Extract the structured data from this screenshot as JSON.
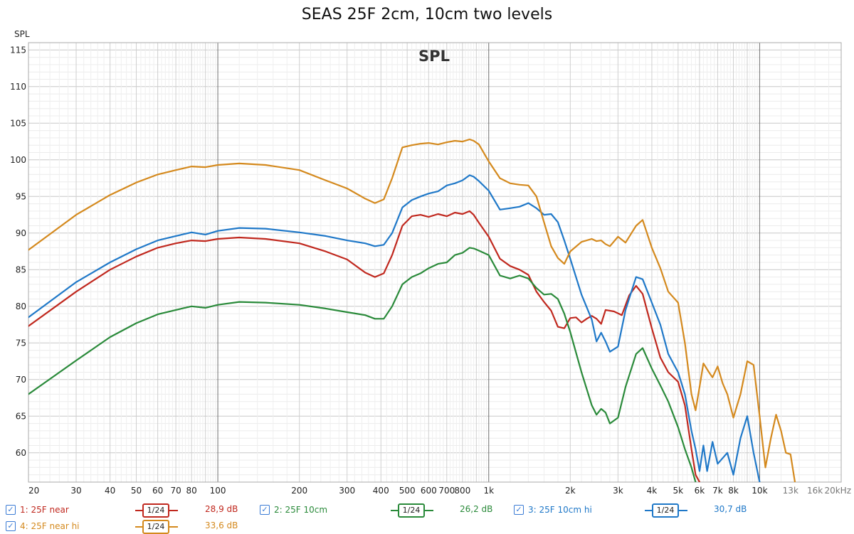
{
  "chart_data": {
    "type": "line",
    "title": "SEAS 25F 2cm, 10cm two levels",
    "plot_label": "SPL",
    "ylabel": "SPL",
    "xscale": "log",
    "xlim": [
      20,
      20000
    ],
    "ylim": [
      56,
      116
    ],
    "grid": true,
    "y_ticks": [
      "115",
      "110",
      "105",
      "100",
      "95",
      "90",
      "85",
      "80",
      "75",
      "70",
      "65",
      "60"
    ],
    "y_tick_values": [
      115,
      110,
      105,
      100,
      95,
      90,
      85,
      80,
      75,
      70,
      65,
      60
    ],
    "x_ticks": [
      {
        "v": 20,
        "label": "20"
      },
      {
        "v": 30,
        "label": "30"
      },
      {
        "v": 40,
        "label": "40"
      },
      {
        "v": 50,
        "label": "50"
      },
      {
        "v": 60,
        "label": "60"
      },
      {
        "v": 70,
        "label": "70"
      },
      {
        "v": 80,
        "label": "80"
      },
      {
        "v": 100,
        "label": "100"
      },
      {
        "v": 200,
        "label": "200"
      },
      {
        "v": 300,
        "label": "300"
      },
      {
        "v": 400,
        "label": "400"
      },
      {
        "v": 500,
        "label": "500"
      },
      {
        "v": 600,
        "label": "600"
      },
      {
        "v": 700,
        "label": "700"
      },
      {
        "v": 800,
        "label": "800"
      },
      {
        "v": 1000,
        "label": "1k"
      },
      {
        "v": 2000,
        "label": "2k"
      },
      {
        "v": 3000,
        "label": "3k"
      },
      {
        "v": 4000,
        "label": "4k"
      },
      {
        "v": 5000,
        "label": "5k"
      },
      {
        "v": 6000,
        "label": "6k"
      },
      {
        "v": 7000,
        "label": "7k"
      },
      {
        "v": 8000,
        "label": "8k"
      },
      {
        "v": 10000,
        "label": "10k"
      },
      {
        "v": 13000,
        "label": "13k"
      },
      {
        "v": 16000,
        "label": "16k"
      },
      {
        "v": 20000,
        "label": "20kHz"
      }
    ],
    "series": [
      {
        "name": "1: 25F near",
        "color": "#c0281e",
        "smoothing": "1/24",
        "level": "28,9 dB",
        "points": [
          [
            20,
            77.3
          ],
          [
            30,
            82
          ],
          [
            40,
            85
          ],
          [
            50,
            86.8
          ],
          [
            60,
            88
          ],
          [
            70,
            88.6
          ],
          [
            80,
            89
          ],
          [
            90,
            88.9
          ],
          [
            100,
            89.2
          ],
          [
            120,
            89.4
          ],
          [
            150,
            89.2
          ],
          [
            200,
            88.6
          ],
          [
            250,
            87.5
          ],
          [
            300,
            86.4
          ],
          [
            350,
            84.6
          ],
          [
            380,
            84
          ],
          [
            410,
            84.5
          ],
          [
            440,
            87
          ],
          [
            480,
            91
          ],
          [
            520,
            92.3
          ],
          [
            560,
            92.5
          ],
          [
            600,
            92.2
          ],
          [
            650,
            92.6
          ],
          [
            700,
            92.3
          ],
          [
            750,
            92.8
          ],
          [
            800,
            92.6
          ],
          [
            850,
            93
          ],
          [
            880,
            92.5
          ],
          [
            920,
            91.4
          ],
          [
            1000,
            89.5
          ],
          [
            1100,
            86.5
          ],
          [
            1200,
            85.5
          ],
          [
            1300,
            85
          ],
          [
            1400,
            84.3
          ],
          [
            1500,
            82
          ],
          [
            1600,
            80.6
          ],
          [
            1700,
            79.4
          ],
          [
            1800,
            77.2
          ],
          [
            1900,
            77
          ],
          [
            2000,
            78.4
          ],
          [
            2100,
            78.5
          ],
          [
            2200,
            77.8
          ],
          [
            2300,
            78.3
          ],
          [
            2400,
            78.7
          ],
          [
            2500,
            78.3
          ],
          [
            2600,
            77.6
          ],
          [
            2700,
            79.5
          ],
          [
            2900,
            79.3
          ],
          [
            3100,
            78.8
          ],
          [
            3300,
            81.5
          ],
          [
            3500,
            82.8
          ],
          [
            3700,
            81.7
          ],
          [
            4000,
            77
          ],
          [
            4300,
            73
          ],
          [
            4600,
            71
          ],
          [
            5000,
            69.7
          ],
          [
            5300,
            66.5
          ],
          [
            5600,
            60.5
          ],
          [
            5800,
            57
          ],
          [
            6000,
            56
          ]
        ]
      },
      {
        "name": "2: 25F 10cm",
        "color": "#2a8a3a",
        "smoothing": "1/24",
        "level": "26,2 dB",
        "points": [
          [
            20,
            68
          ],
          [
            30,
            72.6
          ],
          [
            40,
            75.8
          ],
          [
            50,
            77.7
          ],
          [
            60,
            78.9
          ],
          [
            70,
            79.5
          ],
          [
            80,
            80
          ],
          [
            90,
            79.8
          ],
          [
            100,
            80.2
          ],
          [
            120,
            80.6
          ],
          [
            150,
            80.5
          ],
          [
            200,
            80.2
          ],
          [
            250,
            79.7
          ],
          [
            300,
            79.2
          ],
          [
            350,
            78.8
          ],
          [
            380,
            78.3
          ],
          [
            410,
            78.3
          ],
          [
            440,
            80
          ],
          [
            480,
            83
          ],
          [
            520,
            84
          ],
          [
            560,
            84.5
          ],
          [
            600,
            85.2
          ],
          [
            650,
            85.8
          ],
          [
            700,
            86
          ],
          [
            750,
            87
          ],
          [
            800,
            87.3
          ],
          [
            850,
            88
          ],
          [
            880,
            87.9
          ],
          [
            920,
            87.6
          ],
          [
            1000,
            87
          ],
          [
            1100,
            84.2
          ],
          [
            1200,
            83.8
          ],
          [
            1300,
            84.2
          ],
          [
            1400,
            83.8
          ],
          [
            1500,
            82.5
          ],
          [
            1600,
            81.6
          ],
          [
            1700,
            81.7
          ],
          [
            1800,
            81
          ],
          [
            1900,
            79
          ],
          [
            2000,
            76.5
          ],
          [
            2200,
            71
          ],
          [
            2400,
            66.5
          ],
          [
            2500,
            65.2
          ],
          [
            2600,
            66
          ],
          [
            2700,
            65.5
          ],
          [
            2800,
            64
          ],
          [
            3000,
            64.8
          ],
          [
            3200,
            69
          ],
          [
            3500,
            73.5
          ],
          [
            3700,
            74.3
          ],
          [
            4000,
            71.5
          ],
          [
            4300,
            69.2
          ],
          [
            4600,
            67
          ],
          [
            5000,
            63.5
          ],
          [
            5300,
            60.5
          ],
          [
            5600,
            58
          ],
          [
            5800,
            56
          ]
        ]
      },
      {
        "name": "3: 25F 10cm hi",
        "color": "#1f78c8",
        "smoothing": "1/24",
        "level": "30,7 dB",
        "points": [
          [
            20,
            78.5
          ],
          [
            30,
            83.3
          ],
          [
            40,
            86
          ],
          [
            50,
            87.8
          ],
          [
            60,
            89
          ],
          [
            70,
            89.6
          ],
          [
            80,
            90.1
          ],
          [
            90,
            89.8
          ],
          [
            100,
            90.3
          ],
          [
            120,
            90.7
          ],
          [
            150,
            90.6
          ],
          [
            200,
            90.1
          ],
          [
            250,
            89.6
          ],
          [
            300,
            89
          ],
          [
            350,
            88.6
          ],
          [
            380,
            88.2
          ],
          [
            410,
            88.4
          ],
          [
            440,
            90
          ],
          [
            480,
            93.5
          ],
          [
            520,
            94.5
          ],
          [
            560,
            95
          ],
          [
            600,
            95.4
          ],
          [
            650,
            95.7
          ],
          [
            700,
            96.5
          ],
          [
            750,
            96.8
          ],
          [
            800,
            97.2
          ],
          [
            850,
            97.9
          ],
          [
            880,
            97.7
          ],
          [
            920,
            97.1
          ],
          [
            1000,
            95.8
          ],
          [
            1100,
            93.2
          ],
          [
            1200,
            93.4
          ],
          [
            1300,
            93.6
          ],
          [
            1400,
            94.1
          ],
          [
            1500,
            93.4
          ],
          [
            1600,
            92.5
          ],
          [
            1700,
            92.6
          ],
          [
            1800,
            91.5
          ],
          [
            1900,
            89
          ],
          [
            2000,
            86.5
          ],
          [
            2200,
            81.6
          ],
          [
            2400,
            78.2
          ],
          [
            2500,
            75.2
          ],
          [
            2600,
            76.4
          ],
          [
            2700,
            75.2
          ],
          [
            2800,
            73.8
          ],
          [
            3000,
            74.5
          ],
          [
            3200,
            79.5
          ],
          [
            3500,
            84
          ],
          [
            3700,
            83.7
          ],
          [
            4000,
            80.5
          ],
          [
            4300,
            77.5
          ],
          [
            4600,
            73.5
          ],
          [
            5000,
            71
          ],
          [
            5300,
            68
          ],
          [
            5600,
            63
          ],
          [
            5800,
            60.5
          ],
          [
            6000,
            57.5
          ],
          [
            6200,
            61
          ],
          [
            6400,
            57.5
          ],
          [
            6700,
            61.5
          ],
          [
            7000,
            58.5
          ],
          [
            7600,
            60
          ],
          [
            8000,
            57
          ],
          [
            8500,
            62
          ],
          [
            9000,
            65
          ],
          [
            9500,
            60
          ],
          [
            10000,
            56
          ]
        ]
      },
      {
        "name": "4: 25F near hi",
        "color": "#d4891d",
        "smoothing": "1/24",
        "level": "33,6 dB",
        "points": [
          [
            20,
            87.7
          ],
          [
            30,
            92.5
          ],
          [
            40,
            95.2
          ],
          [
            50,
            96.9
          ],
          [
            60,
            98
          ],
          [
            70,
            98.6
          ],
          [
            80,
            99.1
          ],
          [
            90,
            99
          ],
          [
            100,
            99.3
          ],
          [
            120,
            99.5
          ],
          [
            150,
            99.3
          ],
          [
            200,
            98.6
          ],
          [
            250,
            97.2
          ],
          [
            300,
            96.1
          ],
          [
            350,
            94.7
          ],
          [
            380,
            94.1
          ],
          [
            410,
            94.6
          ],
          [
            440,
            97.5
          ],
          [
            480,
            101.7
          ],
          [
            520,
            102
          ],
          [
            560,
            102.2
          ],
          [
            600,
            102.3
          ],
          [
            650,
            102.1
          ],
          [
            700,
            102.4
          ],
          [
            750,
            102.6
          ],
          [
            800,
            102.5
          ],
          [
            850,
            102.8
          ],
          [
            880,
            102.6
          ],
          [
            920,
            102.1
          ],
          [
            1000,
            99.8
          ],
          [
            1100,
            97.5
          ],
          [
            1200,
            96.8
          ],
          [
            1300,
            96.6
          ],
          [
            1400,
            96.5
          ],
          [
            1500,
            95
          ],
          [
            1600,
            91.5
          ],
          [
            1700,
            88.2
          ],
          [
            1800,
            86.6
          ],
          [
            1900,
            85.8
          ],
          [
            2000,
            87.5
          ],
          [
            2200,
            88.8
          ],
          [
            2400,
            89.2
          ],
          [
            2500,
            88.9
          ],
          [
            2600,
            89
          ],
          [
            2700,
            88.5
          ],
          [
            2800,
            88.2
          ],
          [
            3000,
            89.5
          ],
          [
            3200,
            88.7
          ],
          [
            3500,
            91
          ],
          [
            3700,
            91.8
          ],
          [
            4000,
            88
          ],
          [
            4300,
            85.2
          ],
          [
            4600,
            82
          ],
          [
            5000,
            80.5
          ],
          [
            5300,
            75
          ],
          [
            5600,
            68
          ],
          [
            5800,
            65.8
          ],
          [
            6000,
            69
          ],
          [
            6200,
            72.2
          ],
          [
            6500,
            71
          ],
          [
            6700,
            70.3
          ],
          [
            7000,
            71.8
          ],
          [
            7300,
            69.5
          ],
          [
            7600,
            68
          ],
          [
            8000,
            64.8
          ],
          [
            8500,
            68
          ],
          [
            9000,
            72.5
          ],
          [
            9500,
            72
          ],
          [
            10000,
            65
          ],
          [
            10500,
            58
          ],
          [
            11000,
            62
          ],
          [
            11500,
            65.2
          ],
          [
            12000,
            63
          ],
          [
            12500,
            60
          ],
          [
            13000,
            59.8
          ],
          [
            13500,
            56
          ]
        ]
      }
    ]
  }
}
